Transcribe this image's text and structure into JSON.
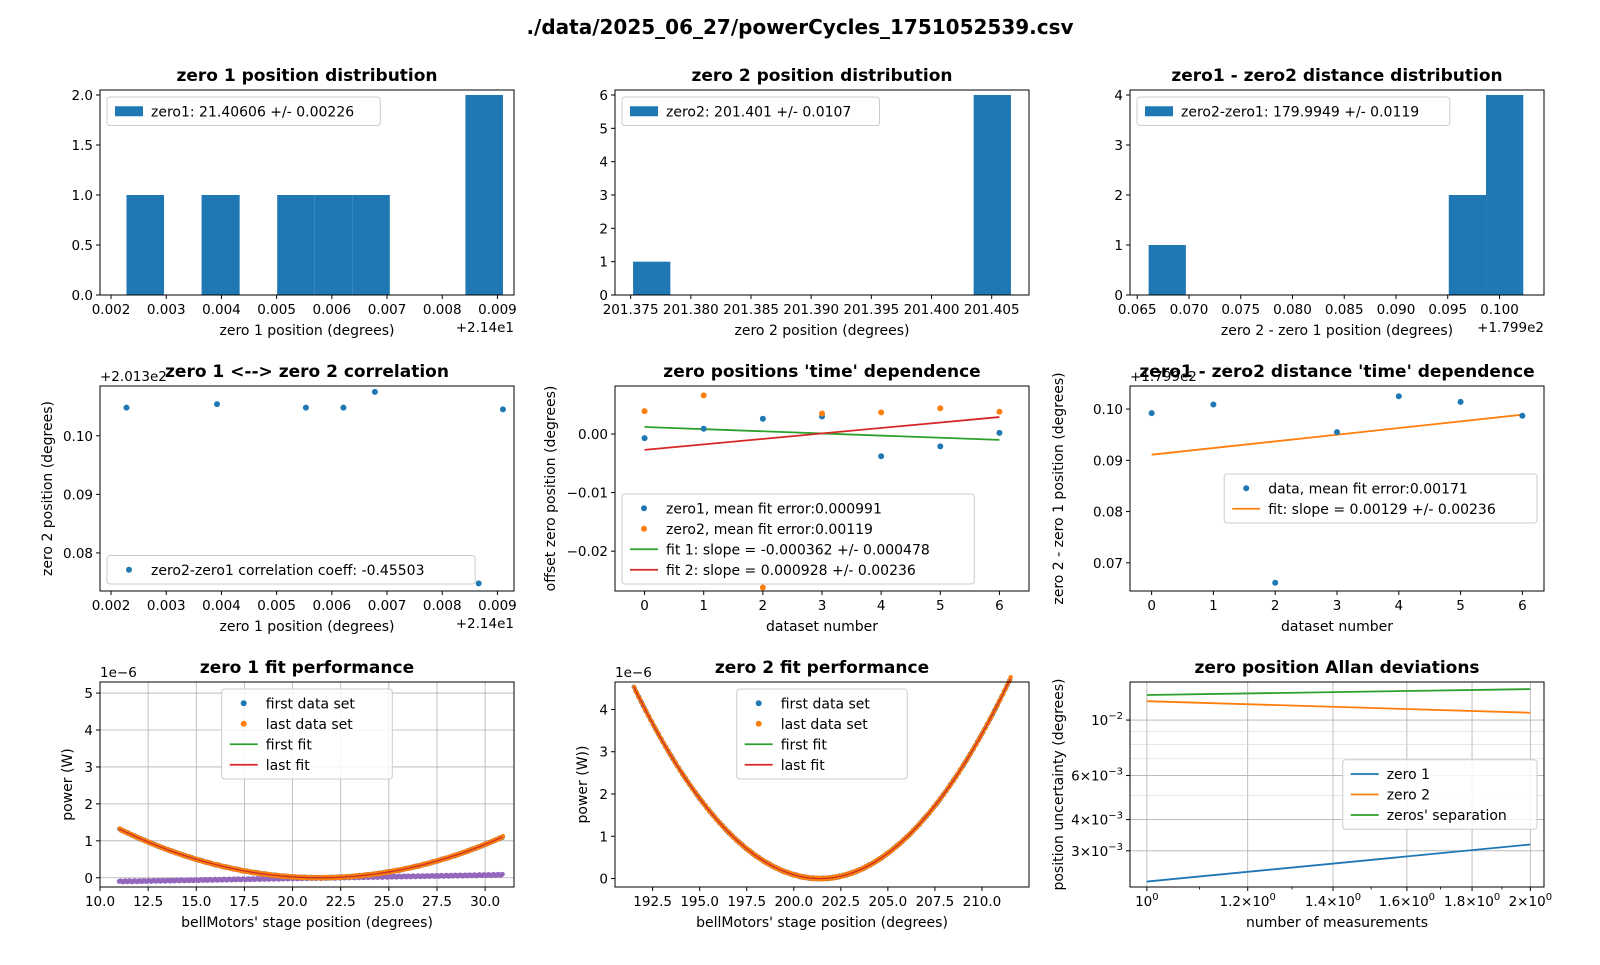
{
  "figure_title": "./data/2025_06_27/powerCycles_1751052539.csv",
  "colors": {
    "blue": "#1f77b4",
    "orange": "#ff7f0e",
    "green": "#2ca02c",
    "red": "#d62728",
    "purple": "#9467bd"
  },
  "chart_data": [
    {
      "id": "p1",
      "type": "bar",
      "title": "zero 1 position distribution",
      "xlabel": "zero 1 position (degrees)",
      "ylabel": "",
      "x_offset_label": "+2.14e1",
      "xlim": [
        0.0018,
        0.0093
      ],
      "ylim": [
        0,
        2.05
      ],
      "xticks": [
        0.002,
        0.003,
        0.004,
        0.005,
        0.006,
        0.007,
        0.008,
        0.009
      ],
      "xtick_labels": [
        "0.002",
        "0.003",
        "0.004",
        "0.005",
        "0.006",
        "0.007",
        "0.008",
        "0.009"
      ],
      "yticks": [
        0,
        0.5,
        1,
        1.5,
        2
      ],
      "ytick_labels": [
        "0.0",
        "0.5",
        "1.0",
        "1.5",
        "2.0"
      ],
      "bin_edges": [
        0.00228,
        0.00296,
        0.00364,
        0.00433,
        0.00501,
        0.00569,
        0.00637,
        0.00705,
        0.00773,
        0.00842,
        0.0091
      ],
      "counts": [
        1,
        0,
        1,
        0,
        1,
        1,
        1,
        0,
        0,
        2
      ],
      "legend": [
        {
          "label": "zero1: 21.40606 +/- 0.00226",
          "kind": "patch",
          "color": "#1f77b4"
        }
      ],
      "legend_loc": "upper-left"
    },
    {
      "id": "p2",
      "type": "bar",
      "title": "zero 2 position distribution",
      "xlabel": "zero 2 position (degrees)",
      "ylabel": "",
      "x_offset_label": "",
      "xlim": [
        201.3737,
        201.4081
      ],
      "ylim": [
        0,
        6.15
      ],
      "xticks": [
        201.375,
        201.38,
        201.385,
        201.39,
        201.395,
        201.4,
        201.405
      ],
      "xtick_labels": [
        "201.375",
        "201.380",
        "201.385",
        "201.390",
        "201.395",
        "201.400",
        "201.405"
      ],
      "yticks": [
        0,
        1,
        2,
        3,
        4,
        5,
        6
      ],
      "ytick_labels": [
        "0",
        "1",
        "2",
        "3",
        "4",
        "5",
        "6"
      ],
      "bin_edges": [
        201.3752,
        201.3783,
        201.3815,
        201.3846,
        201.3878,
        201.3909,
        201.3941,
        201.3972,
        201.4004,
        201.4035,
        201.4066
      ],
      "counts": [
        1,
        0,
        0,
        0,
        0,
        0,
        0,
        0,
        0,
        6
      ],
      "legend": [
        {
          "label": "zero2: 201.401 +/- 0.0107",
          "kind": "patch",
          "color": "#1f77b4"
        }
      ],
      "legend_loc": "upper-left"
    },
    {
      "id": "p3",
      "type": "bar",
      "title": "zero1 - zero2 distance distribution",
      "xlabel": "zero 2 - zero 1 position (degrees)",
      "ylabel": "",
      "x_offset_label": "+1.799e2",
      "xlim": [
        0.0643,
        0.1043
      ],
      "ylim": [
        0,
        4.1
      ],
      "xticks": [
        0.065,
        0.07,
        0.075,
        0.08,
        0.085,
        0.09,
        0.095,
        0.1
      ],
      "xtick_labels": [
        "0.065",
        "0.070",
        "0.075",
        "0.080",
        "0.085",
        "0.090",
        "0.095",
        "0.100"
      ],
      "yticks": [
        0,
        1,
        2,
        3,
        4
      ],
      "ytick_labels": [
        "0",
        "1",
        "2",
        "3",
        "4"
      ],
      "bin_edges": [
        0.0661,
        0.0697,
        0.0733,
        0.077,
        0.0806,
        0.0842,
        0.0878,
        0.0914,
        0.0951,
        0.0987,
        0.1023
      ],
      "counts": [
        1,
        0,
        0,
        0,
        0,
        0,
        0,
        0,
        2,
        4
      ],
      "legend": [
        {
          "label": "zero2-zero1: 179.9949 +/- 0.0119",
          "kind": "patch",
          "color": "#1f77b4"
        }
      ],
      "legend_loc": "upper-left"
    },
    {
      "id": "p4",
      "type": "scatter",
      "title": "zero 1 <--> zero 2 correlation",
      "xlabel": "zero 1 position (degrees)",
      "ylabel": "zero 2 position (degrees)",
      "x_offset_label": "+2.14e1",
      "y_offset_label": "+2.013e2",
      "xlim": [
        0.0018,
        0.0093
      ],
      "ylim": [
        0.0735,
        0.1085
      ],
      "xticks": [
        0.002,
        0.003,
        0.004,
        0.005,
        0.006,
        0.007,
        0.008,
        0.009
      ],
      "xtick_labels": [
        "0.002",
        "0.003",
        "0.004",
        "0.005",
        "0.006",
        "0.007",
        "0.008",
        "0.009"
      ],
      "yticks": [
        0.08,
        0.09,
        0.1
      ],
      "ytick_labels": [
        "0.08",
        "0.09",
        "0.10"
      ],
      "series": [
        {
          "name": "zero2-zero1 correlation coeff: -0.45503",
          "color": "#1f77b4",
          "x": [
            0.00228,
            0.00392,
            0.00553,
            0.00621,
            0.00678,
            0.00866,
            0.0091
          ],
          "y": [
            0.1048,
            0.1054,
            0.1048,
            0.1048,
            0.1075,
            0.0748,
            0.1045
          ]
        }
      ],
      "legend_loc": "lower-left"
    },
    {
      "id": "p5",
      "type": "scatter",
      "title": "zero positions 'time' dependence",
      "xlabel": "dataset number",
      "ylabel": "offset zero position (degrees)",
      "xlim": [
        -0.5,
        6.5
      ],
      "ylim": [
        -0.0268,
        0.0082
      ],
      "xticks": [
        0,
        1,
        2,
        3,
        4,
        5,
        6
      ],
      "xtick_labels": [
        "0",
        "1",
        "2",
        "3",
        "4",
        "5",
        "6"
      ],
      "yticks": [
        -0.02,
        -0.01,
        0.0
      ],
      "ytick_labels": [
        "−0.02",
        "−0.01",
        "0.00"
      ],
      "series": [
        {
          "name": "zero1, mean fit error:0.000991",
          "color": "#1f77b4",
          "x": [
            0,
            1,
            2,
            3,
            4,
            5,
            6
          ],
          "y": [
            -0.0007,
            0.0009,
            0.0026,
            0.003,
            -0.0038,
            -0.0021,
            0.0002
          ]
        },
        {
          "name": "zero2, mean fit error:0.00119",
          "color": "#ff7f0e",
          "x": [
            0,
            1,
            2,
            3,
            4,
            5,
            6
          ],
          "y": [
            0.0039,
            0.0066,
            -0.0262,
            0.0035,
            0.0037,
            0.0044,
            0.0038
          ]
        }
      ],
      "fits": [
        {
          "name": "fit 1: slope = -0.000362 +/- 0.000478",
          "color": "#2ca02c",
          "x": [
            0,
            6
          ],
          "y": [
            0.0012,
            -0.001
          ]
        },
        {
          "name": "fit 2: slope = 0.000928 +/- 0.00236",
          "color": "#d62728",
          "x": [
            0,
            6
          ],
          "y": [
            -0.0027,
            0.0029
          ]
        }
      ],
      "legend_loc": "lower-left"
    },
    {
      "id": "p6",
      "type": "scatter",
      "title": "zero1 - zero2 distance 'time' dependence",
      "xlabel": "dataset number",
      "ylabel": "zero 2 - zero 1 position (degrees)",
      "y_offset_label": "+1.799e2",
      "xlim": [
        -0.35,
        6.35
      ],
      "ylim": [
        0.0645,
        0.1045
      ],
      "xticks": [
        0,
        1,
        2,
        3,
        4,
        5,
        6
      ],
      "xtick_labels": [
        "0",
        "1",
        "2",
        "3",
        "4",
        "5",
        "6"
      ],
      "yticks": [
        0.07,
        0.08,
        0.09,
        0.1
      ],
      "ytick_labels": [
        "0.07",
        "0.08",
        "0.09",
        "0.10"
      ],
      "series": [
        {
          "name": "data, mean fit error:0.00171",
          "color": "#1f77b4",
          "x": [
            0,
            1,
            2,
            3,
            4,
            5,
            6
          ],
          "y": [
            0.0992,
            0.1009,
            0.0661,
            0.0955,
            0.1025,
            0.1014,
            0.0987
          ]
        }
      ],
      "fits": [
        {
          "name": "fit: slope = 0.00129 +/- 0.00236",
          "color": "#ff7f0e",
          "x": [
            0,
            6
          ],
          "y": [
            0.0911,
            0.0989
          ]
        }
      ],
      "legend_loc": "center-right"
    },
    {
      "id": "p7",
      "type": "scatter",
      "title": "zero 1 fit performance",
      "xlabel": "bellMotors' stage position (degrees)",
      "ylabel": "power (W)",
      "y_offset_label": "1e−6",
      "xlim": [
        10.0,
        31.5
      ],
      "ylim": [
        -0.25,
        5.3
      ],
      "xticks": [
        10,
        12.5,
        15,
        17.5,
        20,
        22.5,
        25,
        27.5,
        30
      ],
      "xtick_labels": [
        "10.0",
        "12.5",
        "15.0",
        "17.5",
        "20.0",
        "22.5",
        "25.0",
        "27.5",
        "30.0"
      ],
      "yticks": [
        0,
        1,
        2,
        3,
        4,
        5
      ],
      "ytick_labels": [
        "0",
        "1",
        "2",
        "3",
        "4",
        "5"
      ],
      "grid": true,
      "curve_model": {
        "form": "a*(x-x0)^2",
        "a": 0.01222,
        "x0": 21.4,
        "xrange": [
          11.0,
          30.9
        ]
      },
      "baseline_model": {
        "form": "linear",
        "color": "#9467bd",
        "y_start": -0.1,
        "y_end": 0.08,
        "xrange": [
          11.0,
          30.9
        ]
      },
      "legend": [
        {
          "label": "first data set",
          "kind": "dot",
          "color": "#1f77b4"
        },
        {
          "label": "last data set",
          "kind": "dot",
          "color": "#ff7f0e"
        },
        {
          "label": "first fit",
          "kind": "line",
          "color": "#2ca02c"
        },
        {
          "label": "last fit",
          "kind": "line",
          "color": "#d62728"
        }
      ],
      "legend_loc": "upper-center"
    },
    {
      "id": "p8",
      "type": "scatter",
      "title": "zero 2 fit performance",
      "xlabel": "bellMotors' stage position (degrees)",
      "ylabel": "power (W))",
      "y_offset_label": "1e−6",
      "xlim": [
        190.5,
        212.5
      ],
      "ylim": [
        -0.2,
        4.65
      ],
      "xticks": [
        192.5,
        195,
        197.5,
        200,
        202.5,
        205,
        207.5,
        210
      ],
      "xtick_labels": [
        "192.5",
        "195.0",
        "197.5",
        "200.0",
        "202.5",
        "205.0",
        "207.5",
        "210.0"
      ],
      "yticks": [
        0,
        1,
        2,
        3,
        4
      ],
      "ytick_labels": [
        "0",
        "1",
        "2",
        "3",
        "4"
      ],
      "grid": false,
      "curve_model": {
        "form": "a*(x-x0)^2",
        "a": 0.04628,
        "x0": 201.4,
        "xrange": [
          191.5,
          211.5
        ]
      },
      "legend": [
        {
          "label": "first data set",
          "kind": "dot",
          "color": "#1f77b4"
        },
        {
          "label": "last data set",
          "kind": "dot",
          "color": "#ff7f0e"
        },
        {
          "label": "first fit",
          "kind": "line",
          "color": "#2ca02c"
        },
        {
          "label": "last fit",
          "kind": "line",
          "color": "#d62728"
        }
      ],
      "legend_loc": "upper-center"
    },
    {
      "id": "p9",
      "type": "line",
      "title": "zero position Allan deviations",
      "xlabel": "number of measurements",
      "ylabel": "position uncertainty (degrees)",
      "xscale": "log",
      "yscale": "log",
      "xlim": [
        0.97,
        2.05
      ],
      "ylim": [
        0.00215,
        0.0142
      ],
      "xticks": [
        1,
        1.2,
        1.4,
        1.6,
        1.8,
        2
      ],
      "xtick_labels": [
        "10^0",
        "1.2×10^0",
        "1.4×10^0",
        "1.6×10^0",
        "1.8×10^0",
        "2×10^0"
      ],
      "yticks": [
        0.003,
        0.004,
        0.006,
        0.01
      ],
      "ytick_labels": [
        "3×10^−3",
        "4×10^−3",
        "6×10^−3",
        "10^−2"
      ],
      "grid": true,
      "series": [
        {
          "name": "zero 1",
          "color": "#1f77b4",
          "x": [
            1,
            2
          ],
          "y": [
            0.00226,
            0.00318
          ]
        },
        {
          "name": "zero 2",
          "color": "#ff7f0e",
          "x": [
            1,
            2
          ],
          "y": [
            0.0119,
            0.0107
          ]
        },
        {
          "name": "zeros' separation",
          "color": "#2ca02c",
          "x": [
            1,
            2
          ],
          "y": [
            0.0126,
            0.0133
          ]
        }
      ],
      "legend_loc": "center-right"
    }
  ]
}
